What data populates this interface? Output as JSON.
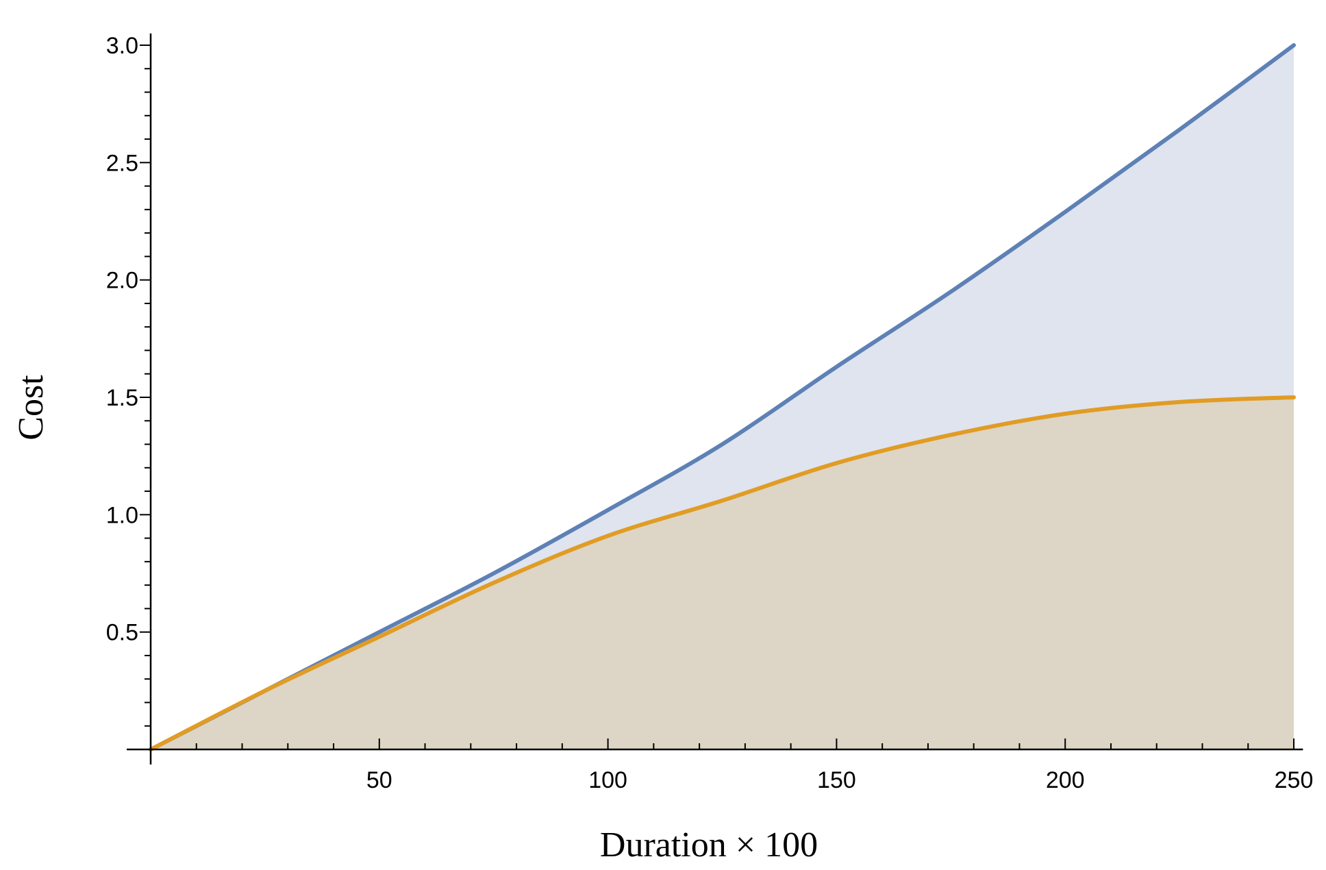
{
  "chart_data": {
    "type": "area",
    "title": "",
    "xlabel": "Duration × 100",
    "ylabel": "Cost",
    "xlim": [
      0,
      252
    ],
    "ylim": [
      0,
      3.05
    ],
    "x_ticks": [
      50,
      100,
      150,
      200,
      250
    ],
    "x_tick_labels": [
      "50",
      "100",
      "150",
      "200",
      "250"
    ],
    "x_minor_step": 10,
    "y_ticks": [
      0.5,
      1.0,
      1.5,
      2.0,
      2.5,
      3.0
    ],
    "y_tick_labels": [
      "0.5",
      "1.0",
      "1.5",
      "2.0",
      "2.5",
      "3.0"
    ],
    "y_minor_step": 0.1,
    "grid": false,
    "legend": "none",
    "x": [
      0,
      25,
      50,
      75,
      100,
      125,
      150,
      175,
      200,
      225,
      250
    ],
    "series": [
      {
        "values": [
          0,
          0.25,
          0.5,
          0.75,
          1.02,
          1.3,
          1.63,
          1.95,
          2.29,
          2.64,
          3.0
        ],
        "color": "#5e81b5",
        "fill": "#dfe4ef"
      },
      {
        "values": [
          0,
          0.25,
          0.48,
          0.71,
          0.91,
          1.06,
          1.22,
          1.34,
          1.43,
          1.48,
          1.5
        ],
        "color": "#e19c24",
        "fill": "#ddd5c5"
      }
    ]
  }
}
